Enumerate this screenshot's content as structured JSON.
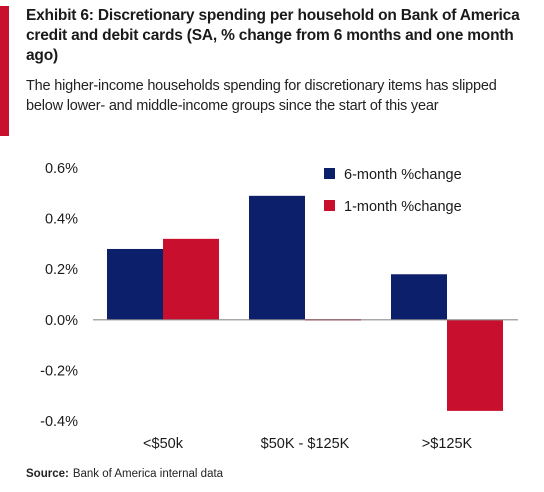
{
  "title": "Exhibit 6: Discretionary spending per household on Bank of America credit and debit cards (SA, % change from 6 months and one month ago)",
  "subtitle": "The higher-income households spending for discretionary items has slipped below lower- and middle-income groups since the start of this year",
  "source": {
    "label": "Source:",
    "text": "Bank of America internal data"
  },
  "colors": {
    "accent": "#c8102e",
    "series_6m": "#0c1f6b",
    "series_1m": "#c8102e"
  },
  "chart_data": {
    "type": "bar",
    "categories": [
      "<$50k",
      "$50K - $125K",
      ">$125K"
    ],
    "series": [
      {
        "name": "6-month %change",
        "values": [
          0.28,
          0.49,
          0.18
        ]
      },
      {
        "name": "1-month %change",
        "values": [
          0.32,
          0.0,
          -0.36
        ]
      }
    ],
    "yticks": [
      "0.6%",
      "0.4%",
      "0.2%",
      "0.0%",
      "-0.2%",
      "-0.4%"
    ],
    "ylim": [
      -0.4,
      0.6
    ],
    "legend": "top-right",
    "grid": false
  }
}
